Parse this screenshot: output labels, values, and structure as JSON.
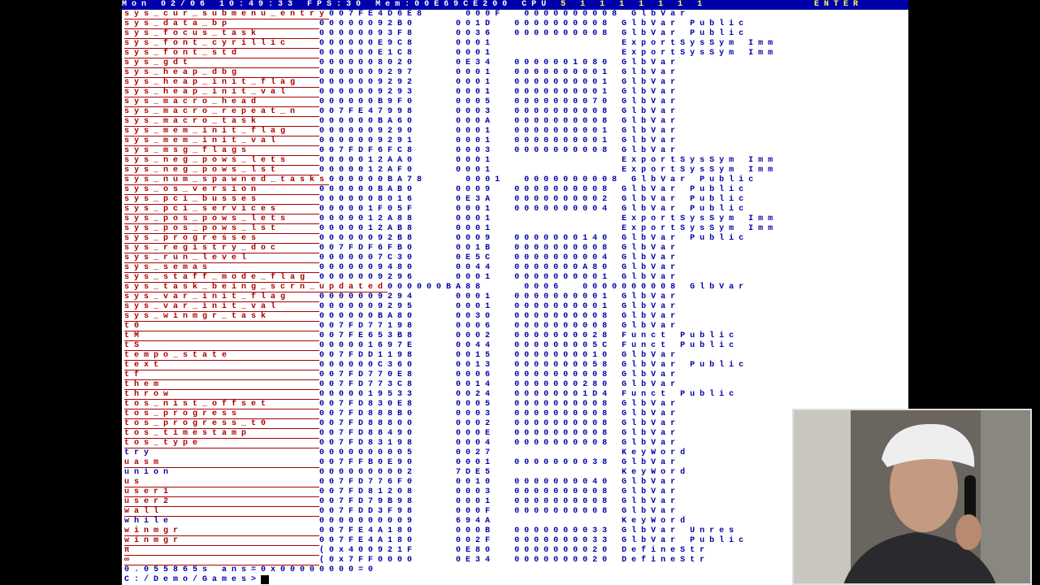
{
  "topbar": {
    "datetime": "Mon 02/06 10:49:33",
    "fps": "FPS:30",
    "mem": "Mem:00E69CE200",
    "cpu_label": "CPU",
    "cpu_bars": "5 1 1 1 1 1 1 1",
    "enter": "ENTER"
  },
  "colors": {
    "symbol_red": "#A80000",
    "text_blue": "#0000A8",
    "topbar_bg": "#0000AA"
  },
  "rows": [
    {
      "name": "sys_cur_submenu_entry",
      "color": "red",
      "addr": "007FE4D6E8",
      "count": "000F",
      "size": "0000000008",
      "type": "GlbVar"
    },
    {
      "name": "sys_data_bp",
      "color": "red",
      "addr": "00000092B0",
      "count": "001D",
      "size": "0000000008",
      "type": "GlbVar Public"
    },
    {
      "name": "sys_focus_task",
      "color": "red",
      "addr": "00000093F8",
      "count": "0036",
      "size": "0000000008",
      "type": "GlbVar Public"
    },
    {
      "name": "sys_font_cyrillic",
      "color": "red",
      "addr": "000000E9C8",
      "count": "0001",
      "size": "",
      "type": "ExportSysSym Imm"
    },
    {
      "name": "sys_font_std",
      "color": "red",
      "addr": "000000E1C8",
      "count": "0001",
      "size": "",
      "type": "ExportSysSym Imm"
    },
    {
      "name": "sys_gdt",
      "color": "red",
      "addr": "0000008020",
      "count": "0E34",
      "size": "0000001080",
      "type": "GlbVar"
    },
    {
      "name": "sys_heap_dbg",
      "color": "red",
      "addr": "0000009297",
      "count": "0001",
      "size": "0000000001",
      "type": "GlbVar"
    },
    {
      "name": "sys_heap_init_flag",
      "color": "red",
      "addr": "0000009292",
      "count": "0001",
      "size": "0000000001",
      "type": "GlbVar"
    },
    {
      "name": "sys_heap_init_val",
      "color": "red",
      "addr": "0000009293",
      "count": "0001",
      "size": "0000000001",
      "type": "GlbVar"
    },
    {
      "name": "sys_macro_head",
      "color": "red",
      "addr": "000000B9F0",
      "count": "0005",
      "size": "0000000070",
      "type": "GlbVar"
    },
    {
      "name": "sys_macro_repeat_n",
      "color": "red",
      "addr": "007FE47998",
      "count": "0003",
      "size": "0000000008",
      "type": "GlbVar"
    },
    {
      "name": "sys_macro_task",
      "color": "red",
      "addr": "000000BA60",
      "count": "000A",
      "size": "0000000008",
      "type": "GlbVar"
    },
    {
      "name": "sys_mem_init_flag",
      "color": "red",
      "addr": "0000009290",
      "count": "0001",
      "size": "0000000001",
      "type": "GlbVar"
    },
    {
      "name": "sys_mem_init_val",
      "color": "red",
      "addr": "0000009291",
      "count": "0001",
      "size": "0000000001",
      "type": "GlbVar"
    },
    {
      "name": "sys_msg_flags",
      "color": "red",
      "addr": "007FDF6FC8",
      "count": "0003",
      "size": "0000000008",
      "type": "GlbVar"
    },
    {
      "name": "sys_neg_pows_lets",
      "color": "red",
      "addr": "0000012AA0",
      "count": "0001",
      "size": "",
      "type": "ExportSysSym Imm"
    },
    {
      "name": "sys_neg_pows_lst",
      "color": "red",
      "addr": "0000012AF0",
      "count": "0001",
      "size": "",
      "type": "ExportSysSym Imm"
    },
    {
      "name": "sys_num_spawned_tasks",
      "color": "red",
      "addr": "000000BA78",
      "count": "0001",
      "size": "0000000008",
      "type": "GlbVar Public"
    },
    {
      "name": "sys_os_version",
      "color": "red",
      "addr": "000000BAB0",
      "count": "0009",
      "size": "0000000008",
      "type": "GlbVar Public"
    },
    {
      "name": "sys_pci_busses",
      "color": "red",
      "addr": "0000008016",
      "count": "0E3A",
      "size": "0000000002",
      "type": "GlbVar Public"
    },
    {
      "name": "sys_pci_services",
      "color": "red",
      "addr": "000001F05F",
      "count": "0001",
      "size": "0000000004",
      "type": "GlbVar Public"
    },
    {
      "name": "sys_pos_pows_lets",
      "color": "red",
      "addr": "0000012A88",
      "count": "0001",
      "size": "",
      "type": "ExportSysSym Imm"
    },
    {
      "name": "sys_pos_pows_lst",
      "color": "red",
      "addr": "0000012AB8",
      "count": "0001",
      "size": "",
      "type": "ExportSysSym Imm"
    },
    {
      "name": "sys_progresses",
      "color": "red",
      "addr": "00000092B8",
      "count": "0009",
      "size": "0000000140",
      "type": "GlbVar Public"
    },
    {
      "name": "sys_registry_doc",
      "color": "red",
      "addr": "007FDF6FB0",
      "count": "001B",
      "size": "0000000008",
      "type": "GlbVar"
    },
    {
      "name": "sys_run_level",
      "color": "red",
      "addr": "0000007C30",
      "count": "0E5C",
      "size": "0000000004",
      "type": "GlbVar"
    },
    {
      "name": "sys_semas",
      "color": "red",
      "addr": "0000009480",
      "count": "0044",
      "size": "0000000A80",
      "type": "GlbVar"
    },
    {
      "name": "sys_staff_mode_flag",
      "color": "red",
      "addr": "0000009296",
      "count": "0001",
      "size": "0000000001",
      "type": "GlbVar"
    },
    {
      "name": "sys_task_being_scrn_updated",
      "color": "red",
      "addr": "000000BA88",
      "count": "0006",
      "size": "0000000008",
      "type": "GlbVar"
    },
    {
      "name": "sys_var_init_flag",
      "color": "red",
      "addr": "0000009294",
      "count": "0001",
      "size": "0000000001",
      "type": "GlbVar"
    },
    {
      "name": "sys_var_init_val",
      "color": "red",
      "addr": "0000009295",
      "count": "0001",
      "size": "0000000001",
      "type": "GlbVar"
    },
    {
      "name": "sys_winmgr_task",
      "color": "red",
      "addr": "000000BA80",
      "count": "0030",
      "size": "0000000008",
      "type": "GlbVar"
    },
    {
      "name": "t0",
      "color": "red",
      "addr": "007FD77198",
      "count": "0006",
      "size": "0000000008",
      "type": "GlbVar"
    },
    {
      "name": "tM",
      "color": "red",
      "addr": "007FE653B8",
      "count": "0002",
      "size": "0000000028",
      "type": "Funct Public"
    },
    {
      "name": "tS",
      "color": "red",
      "addr": "000001697E",
      "count": "0044",
      "size": "000000005C",
      "type": "Funct Public"
    },
    {
      "name": "tempo_state",
      "color": "red",
      "addr": "007FDD1198",
      "count": "0015",
      "size": "0000000010",
      "type": "GlbVar"
    },
    {
      "name": "text",
      "color": "red",
      "addr": "000000C360",
      "count": "0013",
      "size": "0000000058",
      "type": "GlbVar Public"
    },
    {
      "name": "tf",
      "color": "red",
      "addr": "007FD770E8",
      "count": "0006",
      "size": "0000000008",
      "type": "GlbVar"
    },
    {
      "name": "them",
      "color": "red",
      "addr": "007FD773C8",
      "count": "0014",
      "size": "0000000280",
      "type": "GlbVar"
    },
    {
      "name": "throw",
      "color": "red",
      "addr": "0000019533",
      "count": "0024",
      "size": "00000001D4",
      "type": "Funct Public"
    },
    {
      "name": "tos_nist_offset",
      "color": "red",
      "addr": "007FD830E8",
      "count": "0005",
      "size": "0000000008",
      "type": "GlbVar"
    },
    {
      "name": "tos_progress",
      "color": "red",
      "addr": "007FD888B0",
      "count": "0003",
      "size": "0000000008",
      "type": "GlbVar"
    },
    {
      "name": "tos_progress_t0",
      "color": "red",
      "addr": "007FD88800",
      "count": "0002",
      "size": "0000000008",
      "type": "GlbVar"
    },
    {
      "name": "tos_timestamp",
      "color": "red",
      "addr": "007FD88490",
      "count": "000E",
      "size": "0000000008",
      "type": "GlbVar"
    },
    {
      "name": "tos_type",
      "color": "red",
      "addr": "007FD83198",
      "count": "0004",
      "size": "0000000008",
      "type": "GlbVar"
    },
    {
      "name": "try",
      "color": "blue",
      "addr": "0000000005",
      "count": "0027",
      "size": "",
      "type": "KeyWord"
    },
    {
      "name": "uasm",
      "color": "red",
      "addr": "007FFB0E90",
      "count": "0001",
      "size": "0000000038",
      "type": "GlbVar"
    },
    {
      "name": "union",
      "color": "blue",
      "addr": "0000000002",
      "count": "7DE5",
      "size": "",
      "type": "KeyWord"
    },
    {
      "name": "us",
      "color": "red",
      "addr": "007FD776F0",
      "count": "0010",
      "size": "0000000040",
      "type": "GlbVar"
    },
    {
      "name": "user1",
      "color": "red",
      "addr": "007FD81208",
      "count": "0003",
      "size": "0000000008",
      "type": "GlbVar"
    },
    {
      "name": "user2",
      "color": "red",
      "addr": "007FD79B98",
      "count": "0001",
      "size": "0000000008",
      "type": "GlbVar"
    },
    {
      "name": "wall",
      "color": "red",
      "addr": "007FDD3F98",
      "count": "000F",
      "size": "0000000008",
      "type": "GlbVar"
    },
    {
      "name": "while",
      "color": "blue",
      "addr": "0000000009",
      "count": "694A",
      "size": "",
      "type": "KeyWord"
    },
    {
      "name": "winmgr",
      "color": "red",
      "addr": "007FE4A180",
      "count": "000B",
      "size": "0000000033",
      "type": "GlbVar Unres"
    },
    {
      "name": "winmgr",
      "color": "red",
      "addr": "007FE4A180",
      "count": "002F",
      "size": "0000000033",
      "type": "GlbVar Public"
    },
    {
      "name": "π",
      "color": "red",
      "addr": "(0x400921F",
      "count": "0E80",
      "size": "0000000020",
      "type": "DefineStr"
    },
    {
      "name": "∞",
      "color": "red",
      "addr": "(0x7FF0000",
      "count": "0E34",
      "size": "0000000020",
      "type": "DefineStr"
    }
  ],
  "result_line": "0.055865s ans=0x00000000=0",
  "prompt": "C:/Demo/Games>"
}
